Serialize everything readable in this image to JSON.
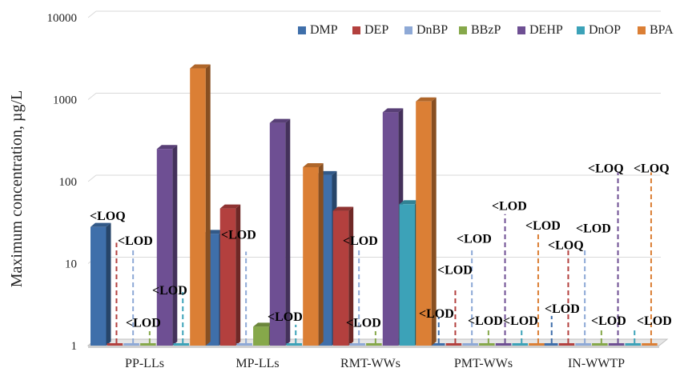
{
  "chart_data": {
    "type": "bar",
    "title": "",
    "xlabel": "",
    "ylabel": "Maximum concentration, µg/L",
    "yscale": "log",
    "ylim": [
      1,
      10000
    ],
    "yticks": [
      "1",
      "10",
      "100",
      "1000",
      "10000"
    ],
    "grid": true,
    "legend_position": "top-right",
    "categories": [
      "PP-LLs",
      "MP-LLs",
      "RMT-WWs",
      "PMT-WWs",
      "IN-WWTP"
    ],
    "series": [
      {
        "name": "DMP",
        "color": "#3f6faa",
        "values": [
          28,
          23,
          120,
          null,
          null
        ],
        "dashed_height": [
          null,
          null,
          null,
          2.2,
          2.3
        ]
      },
      {
        "name": "DEP",
        "color": "#b3403e",
        "values": [
          null,
          47,
          44,
          null,
          null
        ],
        "dashed_height": [
          18,
          null,
          null,
          5,
          15
        ]
      },
      {
        "name": "DnBP",
        "color": "#8ea9d6",
        "values": [
          null,
          null,
          null,
          null,
          null
        ],
        "dashed_height": [
          15,
          14,
          15,
          15,
          15
        ]
      },
      {
        "name": "BBzP",
        "color": "#86a84a",
        "values": [
          null,
          1.7,
          null,
          null,
          null
        ],
        "dashed_height": [
          1.5,
          null,
          1.5,
          1.6,
          1.6
        ]
      },
      {
        "name": "DEHP",
        "color": "#6e4f93",
        "values": [
          250,
          520,
          700,
          null,
          null
        ],
        "dashed_height": [
          null,
          null,
          null,
          40,
          130
        ]
      },
      {
        "name": "DnOP",
        "color": "#3ca2b8",
        "values": [
          null,
          null,
          53,
          null,
          null
        ],
        "dashed_height": [
          4.5,
          1.8,
          null,
          1.6,
          1.6
        ]
      },
      {
        "name": "BPA",
        "color": "#db7f35",
        "values": [
          2400,
          150,
          950,
          null,
          null
        ],
        "dashed_height": [
          null,
          null,
          null,
          25,
          130
        ]
      }
    ],
    "annotations": [
      {
        "text": "<LOQ",
        "category": "PP-LLs",
        "at": 34
      },
      {
        "text": "<LOD",
        "category": "PP-LLs",
        "at": 17
      },
      {
        "text": "<LOD",
        "category": "PP-LLs",
        "at": 1.7
      },
      {
        "text": "<LOD",
        "category": "PP-LLs",
        "at": 4.2
      },
      {
        "text": "<LOD",
        "category": "MP-LLs",
        "at": 20
      },
      {
        "text": "<LOD",
        "category": "MP-LLs",
        "at": 2
      },
      {
        "text": "<LOD",
        "category": "RMT-WWs",
        "at": 17
      },
      {
        "text": "<LOD",
        "category": "RMT-WWs",
        "at": 1.7
      },
      {
        "text": "<LOD",
        "category": "PMT-WWs",
        "at": 45
      },
      {
        "text": "<LOD",
        "category": "PMT-WWs",
        "at": 26
      },
      {
        "text": "<LOD",
        "category": "PMT-WWs",
        "at": 18
      },
      {
        "text": "<LOD",
        "category": "PMT-WWs",
        "at": 7.5
      },
      {
        "text": "<LOD",
        "category": "PMT-WWs",
        "at": 2.2
      },
      {
        "text": "<LOD",
        "category": "PMT-WWs",
        "at": 1.8
      },
      {
        "text": "<LOD",
        "category": "PMT-WWs",
        "at": 1.8
      },
      {
        "text": "<LOQ",
        "category": "IN-WWTP",
        "at": 130
      },
      {
        "text": "<LOQ",
        "category": "IN-WWTP",
        "at": 130
      },
      {
        "text": "<LOD",
        "category": "IN-WWTP",
        "at": 24
      },
      {
        "text": "<LOQ",
        "category": "IN-WWTP",
        "at": 15
      },
      {
        "text": "<LOD",
        "category": "IN-WWTP",
        "at": 2.5
      },
      {
        "text": "<LOD",
        "category": "IN-WWTP",
        "at": 1.8
      },
      {
        "text": "<LOD",
        "category": "IN-WWTP",
        "at": 1.8
      }
    ]
  }
}
